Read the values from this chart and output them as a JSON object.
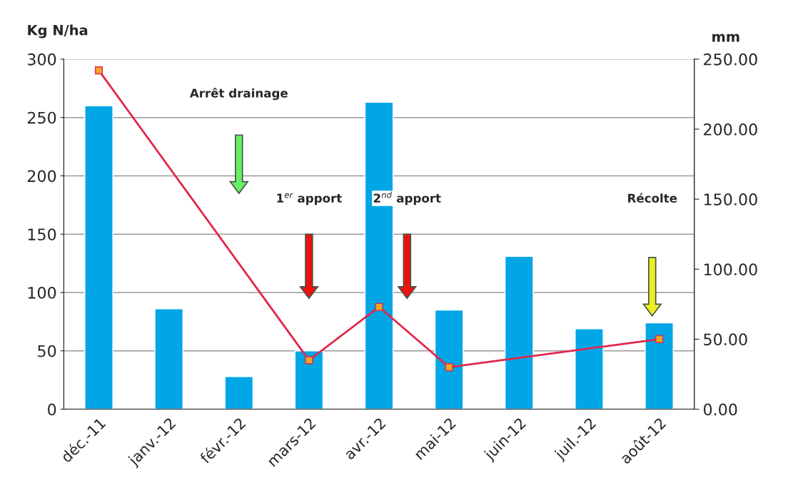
{
  "chart_data": {
    "type": "bar",
    "ylabel": "Kg N/ha",
    "y2label": "mm",
    "categories": [
      "déc.-11",
      "janv.-12",
      "févr.-12",
      "mars-12",
      "avr.-12",
      "mai-12",
      "juin-12",
      "juil.-12",
      "août-12"
    ],
    "series": [
      {
        "color": "#00a6e6",
        "values": [
          260,
          86,
          28,
          50,
          263,
          85,
          131,
          69,
          74
        ]
      },
      {
        "type": "line",
        "axis": "y2",
        "color": "#e0284a",
        "marker": "square",
        "values": [
          242,
          null,
          null,
          35,
          73,
          30,
          null,
          null,
          50
        ]
      }
    ],
    "ylim": [
      0,
      300
    ],
    "yticks": [
      0,
      50,
      100,
      150,
      200,
      250,
      300
    ],
    "y2lim": [
      0,
      250
    ],
    "y2ticks": [
      {
        "value": 0,
        "label": "0.00"
      },
      {
        "value": 50,
        "label": "50.00"
      },
      {
        "value": 100,
        "label": "100.00"
      },
      {
        "value": 150,
        "label": "150.00"
      },
      {
        "value": 200,
        "label": "200.00"
      },
      {
        "value": 250,
        "label": "250.00"
      }
    ],
    "grid": "y",
    "annotations": [
      "Arrêt drainage",
      "1$^{er}$ apport",
      "2$^{nd}$ apport",
      "Récolte"
    ]
  }
}
